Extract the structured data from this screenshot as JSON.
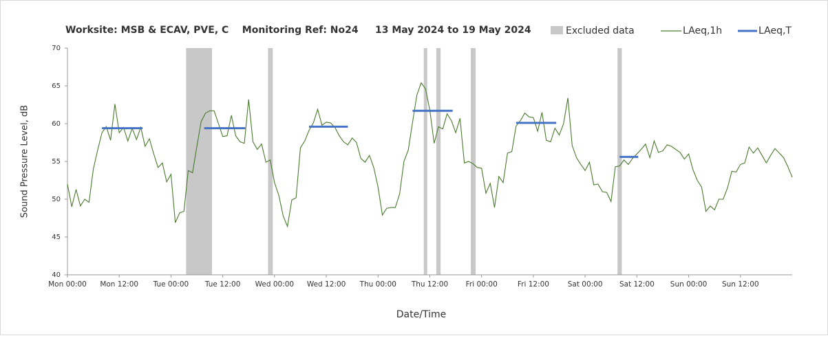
{
  "chart_data": {
    "type": "line",
    "title": "Worksite: MSB & ECAV, PVE, C    Monitoring Ref: No24     13 May 2024 to 19 May 2024",
    "xlabel": "Date/Time",
    "ylabel": "Sound Pressure Level, dB",
    "xlim": [
      0,
      168
    ],
    "ylim": [
      40,
      70
    ],
    "yticks": [
      40,
      45,
      50,
      55,
      60,
      65,
      70
    ],
    "xticks": [
      {
        "value": 0,
        "label": "Mon 00:00"
      },
      {
        "value": 12,
        "label": "Mon 12:00"
      },
      {
        "value": 24,
        "label": "Tue 00:00"
      },
      {
        "value": 36,
        "label": "Tue 12:00"
      },
      {
        "value": 48,
        "label": "Wed 00:00"
      },
      {
        "value": 60,
        "label": "Wed 12:00"
      },
      {
        "value": 72,
        "label": "Thu 00:00"
      },
      {
        "value": 84,
        "label": "Thu 12:00"
      },
      {
        "value": 96,
        "label": "Fri 00:00"
      },
      {
        "value": 108,
        "label": "Fri 12:00"
      },
      {
        "value": 120,
        "label": "Sat 00:00"
      },
      {
        "value": 132,
        "label": "Sat 12:00"
      },
      {
        "value": 144,
        "label": "Sun 00:00"
      },
      {
        "value": 156,
        "label": "Sun 12:00"
      }
    ],
    "excluded": {
      "name": "Excluded data",
      "color": "#c8c8c8",
      "ranges": [
        [
          27.5,
          33.5
        ],
        [
          46.5,
          47.6
        ],
        [
          82.6,
          83.4
        ],
        [
          85.5,
          86.5
        ],
        [
          93.5,
          94.6
        ],
        [
          127.5,
          128.5
        ]
      ]
    },
    "series": [
      {
        "name": "LAeq,1h",
        "color": "#4a7a2c",
        "x": [
          0,
          1,
          2,
          3,
          4,
          5,
          6,
          7,
          8,
          9,
          10,
          11,
          12,
          13,
          14,
          15,
          16,
          17,
          18,
          19,
          20,
          21,
          22,
          23,
          24,
          25,
          26,
          27,
          28,
          29,
          30,
          31,
          32,
          33,
          34,
          35,
          36,
          37,
          38,
          39,
          40,
          41,
          42,
          43,
          44,
          45,
          46,
          47,
          48,
          49,
          50,
          51,
          52,
          53,
          54,
          55,
          56,
          57,
          58,
          59,
          60,
          61,
          62,
          63,
          64,
          65,
          66,
          67,
          68,
          69,
          70,
          71,
          72,
          73,
          74,
          75,
          76,
          77,
          78,
          79,
          80,
          81,
          82,
          83,
          84,
          85,
          86,
          87,
          88,
          89,
          90,
          91,
          92,
          93,
          94,
          95,
          96,
          97,
          98,
          99,
          100,
          101,
          102,
          103,
          104,
          105,
          106,
          107,
          108,
          109,
          110,
          111,
          112,
          113,
          114,
          115,
          116,
          117,
          118,
          119,
          120,
          121,
          122,
          123,
          124,
          125,
          126,
          127,
          128,
          129,
          130,
          131,
          132,
          133,
          134,
          135,
          136,
          137,
          138,
          139,
          140,
          141,
          142,
          143,
          144,
          145,
          146,
          147,
          148,
          149,
          150,
          151,
          152,
          153,
          154,
          155,
          156,
          157,
          158,
          159,
          160,
          161,
          162,
          163,
          164,
          165,
          166,
          167,
          168
        ],
        "values": [
          52,
          49,
          51.3,
          49.1,
          50,
          49.6,
          54,
          56.5,
          58.8,
          59.6,
          57.8,
          62.6,
          58.8,
          59.5,
          57.7,
          59.4,
          57.9,
          59.5,
          57,
          58,
          56,
          54.2,
          54.8,
          52.3,
          53.3,
          46.9,
          48.2,
          48.4,
          53.8,
          53.5,
          57,
          60.3,
          61.4,
          61.7,
          61.7,
          60,
          58.3,
          58.4,
          61.1,
          58.4,
          57.6,
          57.4,
          63.2,
          57.6,
          56.6,
          57.3,
          54.9,
          55.2,
          52.2,
          50.5,
          47.8,
          46.4,
          49.9,
          50.2,
          56.8,
          57.7,
          59.1,
          60.1,
          61.9,
          59.8,
          60.2,
          60.1,
          59.5,
          58.4,
          57.6,
          57.2,
          58.1,
          57.5,
          55.4,
          54.9,
          55.8,
          54.2,
          51.6,
          47.9,
          48.8,
          48.9,
          48.9,
          50.7,
          55,
          56.5,
          60.2,
          63.8,
          65.4,
          64.6,
          61.8,
          57.4,
          59.6,
          59.3,
          61.3,
          60.4,
          58.8,
          60.7,
          54.8,
          55,
          54.7,
          54.2,
          54.1,
          50.8,
          52.1,
          48.9,
          53,
          52.2,
          56.1,
          56.3,
          59.7,
          60.4,
          61.4,
          60.9,
          60.8,
          59,
          61.5,
          57.8,
          57.6,
          59.4,
          58.5,
          60,
          63.4,
          57.1,
          55.5,
          54.6,
          53.8,
          54.9,
          51.9,
          52,
          51,
          50.9,
          49.7,
          54.3,
          54.4,
          55.2,
          54.6,
          55.4,
          56,
          56.6,
          57.3,
          55.5,
          57.7,
          56.2,
          56.4,
          57.2,
          57,
          56.6,
          56.2,
          55.3,
          56,
          53.9,
          52.5,
          51.6,
          48.4,
          49.1,
          48.6,
          50,
          50,
          51.5,
          53.7,
          53.6,
          54.6,
          54.8,
          56.9,
          56.1,
          56.8,
          55.8,
          54.8,
          55.8,
          56.7,
          56.1,
          55.5,
          54.3,
          52.9
        ]
      },
      {
        "name": "LAeq,T",
        "color": "#4472c4",
        "segments": [
          [
            8,
            17.4
          ],
          [
            31.7,
            41.2
          ],
          [
            56,
            65
          ],
          [
            80,
            89.3
          ],
          [
            104,
            113.3
          ],
          [
            128,
            132.3
          ]
        ],
        "values": [
          59.4,
          59.4,
          59.6,
          61.7,
          60.1,
          55.6
        ]
      }
    ]
  }
}
